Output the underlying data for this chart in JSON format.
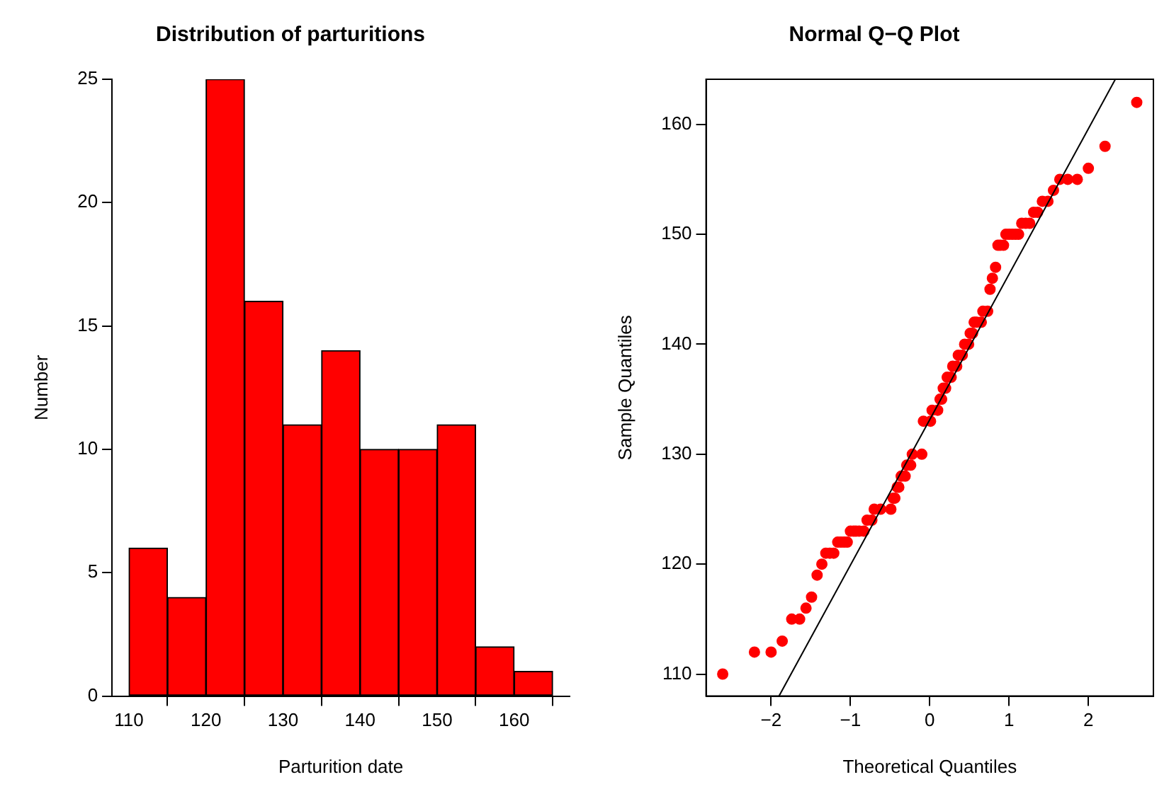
{
  "chart_data": [
    {
      "type": "histogram",
      "title": "Distribution of parturitions",
      "xlabel": "Parturition date",
      "ylabel": "Number",
      "bins": [
        110,
        115,
        120,
        125,
        130,
        135,
        140,
        145,
        150,
        155,
        160,
        165
      ],
      "values": [
        6,
        4,
        25,
        16,
        11,
        14,
        10,
        10,
        11,
        2,
        1
      ],
      "color": "#ff0000",
      "xlim": [
        107.8,
        167.2
      ],
      "xticks": [
        110,
        120,
        130,
        140,
        150,
        160
      ],
      "ylim": [
        0,
        25
      ],
      "yticks": [
        0,
        5,
        10,
        15,
        20,
        25
      ],
      "grid": false,
      "legend": false
    },
    {
      "type": "scatter",
      "title": "Normal Q−Q Plot",
      "xlabel": "Theoretical Quantiles",
      "ylabel": "Sample Quantiles",
      "xlim": [
        -2.82,
        2.82
      ],
      "xticks": [
        {
          "value": -2,
          "label": "−2"
        },
        {
          "value": -1,
          "label": "−1"
        },
        0,
        1,
        2
      ],
      "ylim": [
        108,
        164.1
      ],
      "yticks": [
        110,
        120,
        130,
        140,
        150,
        160
      ],
      "grid": false,
      "legend": false,
      "marker": "circle",
      "series": [
        {
          "color": "#ff0000",
          "x": [
            -2.61,
            -2.21,
            -2.0,
            -1.86,
            -1.74,
            -1.64,
            -1.56,
            -1.49,
            -1.42,
            -1.36,
            -1.31,
            -1.26,
            -1.21,
            -1.16,
            -1.12,
            -1.08,
            -1.04,
            -1.0,
            -0.96,
            -0.93,
            -0.89,
            -0.83,
            -0.79,
            -0.73,
            -0.7,
            -0.62,
            -0.49,
            -0.46,
            -0.44,
            -0.41,
            -0.39,
            -0.36,
            -0.31,
            -0.29,
            -0.24,
            -0.22,
            -0.1,
            -0.08,
            0.01,
            0.03,
            0.1,
            0.13,
            0.15,
            0.17,
            0.2,
            0.22,
            0.27,
            0.29,
            0.34,
            0.36,
            0.41,
            0.44,
            0.49,
            0.51,
            0.54,
            0.56,
            0.59,
            0.65,
            0.67,
            0.73,
            0.76,
            0.79,
            0.83,
            0.86,
            0.89,
            0.93,
            0.96,
            1.0,
            1.04,
            1.08,
            1.12,
            1.16,
            1.21,
            1.26,
            1.31,
            1.36,
            1.42,
            1.49,
            1.56,
            1.64,
            1.74,
            1.86,
            2.0,
            2.21,
            2.61
          ],
          "values": [
            110,
            112,
            112,
            113,
            115,
            115,
            116,
            117,
            119,
            120,
            121,
            121,
            121,
            122,
            122,
            122,
            122,
            123,
            123,
            123,
            123,
            123,
            124,
            124,
            125,
            125,
            125,
            126,
            126,
            127,
            127,
            128,
            128,
            129,
            129,
            130,
            130,
            133,
            133,
            134,
            134,
            135,
            135,
            136,
            136,
            137,
            137,
            138,
            138,
            139,
            139,
            140,
            140,
            141,
            141,
            142,
            142,
            142,
            143,
            143,
            145,
            146,
            147,
            149,
            149,
            149,
            150,
            150,
            150,
            150,
            150,
            151,
            151,
            151,
            152,
            152,
            153,
            153,
            154,
            155,
            155,
            155,
            156,
            158,
            162
          ]
        },
        {
          "type": "line",
          "color": "#000000",
          "marker": "none",
          "x": [
            -1.9,
            2.34
          ],
          "values": [
            108,
            164.1
          ]
        }
      ]
    }
  ]
}
